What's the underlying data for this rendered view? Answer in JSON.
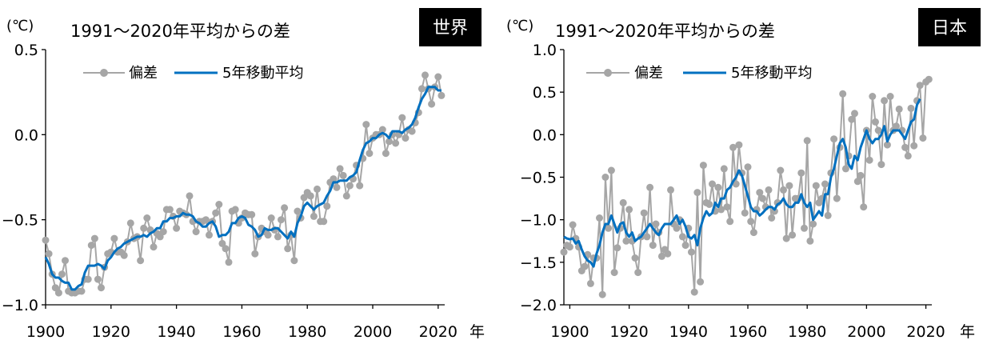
{
  "chart_data": [
    {
      "type": "line",
      "region_label": "世界",
      "unit_label": "(℃)",
      "title": "1991〜2020年平均からの差",
      "xlabel": "年",
      "ylim": [
        -1.0,
        0.5
      ],
      "yticks": [
        -1.0,
        -0.5,
        0.0,
        0.5
      ],
      "ytick_labels": [
        "−1.0",
        "−0.5",
        "0.0",
        "0.5"
      ],
      "xlim": [
        1900,
        2022
      ],
      "xticks": [
        1900,
        1920,
        1940,
        1960,
        1980,
        2000,
        2020
      ],
      "xtick_labels": [
        "1900",
        "1920",
        "1940",
        "1960",
        "1980",
        "2000",
        "2020"
      ],
      "legend": {
        "position": "top-left",
        "entries": [
          "偏差",
          "5年移動平均"
        ]
      },
      "colors": {
        "anomaly": "#a6a6a6",
        "moving_average": "#0070c0"
      },
      "series": [
        {
          "name": "偏差",
          "start_year": 1900,
          "values": [
            -0.62,
            -0.7,
            -0.82,
            -0.9,
            -0.93,
            -0.82,
            -0.74,
            -0.92,
            -0.93,
            -0.93,
            -0.92,
            -0.92,
            -0.85,
            -0.85,
            -0.65,
            -0.61,
            -0.85,
            -0.9,
            -0.78,
            -0.7,
            -0.69,
            -0.61,
            -0.69,
            -0.69,
            -0.71,
            -0.63,
            -0.52,
            -0.61,
            -0.6,
            -0.74,
            -0.55,
            -0.49,
            -0.56,
            -0.66,
            -0.58,
            -0.6,
            -0.57,
            -0.44,
            -0.44,
            -0.48,
            -0.55,
            -0.45,
            -0.46,
            -0.47,
            -0.36,
            -0.51,
            -0.57,
            -0.51,
            -0.51,
            -0.5,
            -0.59,
            -0.51,
            -0.46,
            -0.41,
            -0.64,
            -0.67,
            -0.75,
            -0.45,
            -0.44,
            -0.52,
            -0.49,
            -0.46,
            -0.47,
            -0.47,
            -0.7,
            -0.6,
            -0.55,
            -0.57,
            -0.59,
            -0.49,
            -0.56,
            -0.6,
            -0.5,
            -0.43,
            -0.67,
            -0.59,
            -0.74,
            -0.45,
            -0.49,
            -0.37,
            -0.34,
            -0.36,
            -0.48,
            -0.32,
            -0.51,
            -0.51,
            -0.42,
            -0.28,
            -0.26,
            -0.31,
            -0.2,
            -0.24,
            -0.36,
            -0.3,
            -0.26,
            -0.18,
            -0.3,
            -0.14,
            0.06,
            -0.11,
            -0.02,
            0.0,
            0.0,
            0.03,
            -0.11,
            -0.04,
            0.0,
            -0.05,
            0.0,
            0.1,
            -0.02,
            0.03,
            0.02,
            0.07,
            0.13,
            0.27,
            0.35,
            0.27,
            0.18,
            0.28,
            0.34,
            0.23
          ]
        },
        {
          "name": "5年移動平均",
          "start_year": 1900,
          "values": [
            -0.72,
            -0.76,
            -0.82,
            -0.84,
            -0.84,
            -0.86,
            -0.87,
            -0.87,
            -0.91,
            -0.91,
            -0.89,
            -0.88,
            -0.81,
            -0.77,
            -0.77,
            -0.77,
            -0.76,
            -0.77,
            -0.79,
            -0.74,
            -0.72,
            -0.69,
            -0.67,
            -0.66,
            -0.64,
            -0.63,
            -0.62,
            -0.61,
            -0.6,
            -0.6,
            -0.59,
            -0.6,
            -0.58,
            -0.57,
            -0.55,
            -0.55,
            -0.51,
            -0.51,
            -0.49,
            -0.49,
            -0.48,
            -0.48,
            -0.46,
            -0.47,
            -0.47,
            -0.48,
            -0.51,
            -0.52,
            -0.54,
            -0.54,
            -0.52,
            -0.51,
            -0.54,
            -0.6,
            -0.59,
            -0.59,
            -0.57,
            -0.52,
            -0.52,
            -0.49,
            -0.48,
            -0.49,
            -0.53,
            -0.54,
            -0.56,
            -0.6,
            -0.59,
            -0.55,
            -0.56,
            -0.56,
            -0.55,
            -0.55,
            -0.57,
            -0.59,
            -0.61,
            -0.57,
            -0.6,
            -0.52,
            -0.48,
            -0.42,
            -0.4,
            -0.42,
            -0.44,
            -0.42,
            -0.41,
            -0.4,
            -0.36,
            -0.33,
            -0.28,
            -0.28,
            -0.27,
            -0.27,
            -0.27,
            -0.25,
            -0.24,
            -0.22,
            -0.15,
            -0.09,
            -0.05,
            -0.04,
            -0.02,
            -0.02,
            0.0,
            0.01,
            0.0,
            -0.02,
            0.02,
            0.02,
            0.02,
            0.01,
            0.03,
            0.04,
            0.06,
            0.1,
            0.16,
            0.21,
            0.24,
            0.28,
            0.28,
            0.28,
            0.26,
            0.26
          ]
        }
      ]
    },
    {
      "type": "line",
      "region_label": "日本",
      "unit_label": "(℃)",
      "title": "1991〜2020年平均からの差",
      "xlabel": "年",
      "ylim": [
        -2.0,
        1.0
      ],
      "yticks": [
        -2.0,
        -1.5,
        -1.0,
        -0.5,
        0.0,
        0.5,
        1.0
      ],
      "ytick_labels": [
        "−2.0",
        "−1.5",
        "−1.0",
        "−0.5",
        "0.0",
        "0.5",
        "1.0"
      ],
      "xlim": [
        1898,
        2022
      ],
      "xticks": [
        1900,
        1920,
        1940,
        1960,
        1980,
        2000,
        2020
      ],
      "xtick_labels": [
        "1900",
        "1920",
        "1940",
        "1960",
        "1980",
        "2000",
        "2020"
      ],
      "legend": {
        "position": "top-left",
        "entries": [
          "偏差",
          "5年移動平均"
        ]
      },
      "colors": {
        "anomaly": "#a6a6a6",
        "moving_average": "#0070c0"
      },
      "series": [
        {
          "name": "偏差",
          "start_year": 1898,
          "values": [
            -1.38,
            -1.3,
            -1.32,
            -1.06,
            -1.22,
            -1.32,
            -1.6,
            -1.55,
            -1.41,
            -1.75,
            -1.45,
            -1.45,
            -0.98,
            -1.88,
            -0.5,
            -1.1,
            -0.42,
            -1.62,
            -1.33,
            -1.1,
            -0.8,
            -1.25,
            -0.88,
            -1.25,
            -1.45,
            -1.62,
            -1.2,
            -0.92,
            -1.2,
            -0.62,
            -1.3,
            -1.05,
            -1.15,
            -1.43,
            -1.35,
            -1.4,
            -0.65,
            -1.05,
            -1.1,
            -1.0,
            -1.2,
            -1.3,
            -1.1,
            -1.38,
            -1.85,
            -0.68,
            -1.73,
            -0.36,
            -0.8,
            -0.82,
            -0.58,
            -0.9,
            -0.62,
            -0.88,
            -0.4,
            -0.85,
            -1.02,
            -0.15,
            -0.58,
            -0.12,
            -0.45,
            -0.92,
            -0.38,
            -1.02,
            -1.15,
            -0.88,
            -0.68,
            -0.75,
            -0.85,
            -0.65,
            -0.98,
            -0.9,
            -0.8,
            -0.42,
            -0.65,
            -1.22,
            -0.6,
            -1.18,
            -0.75,
            -0.75,
            -0.45,
            -1.1,
            -0.07,
            -1.25,
            -1.05,
            -0.6,
            -0.8,
            -0.75,
            -0.58,
            -0.95,
            -0.45,
            -0.05,
            -0.75,
            -0.15,
            0.48,
            -0.4,
            -0.25,
            0.18,
            0.25,
            -0.55,
            -0.48,
            -0.85,
            0.05,
            -0.3,
            0.45,
            0.15,
            0.05,
            -0.35,
            0.4,
            -0.12,
            0.45,
            0.05,
            0.1,
            0.3,
            0.05,
            -0.15,
            -0.25,
            0.31,
            -0.13,
            0.4,
            0.58,
            -0.04,
            0.62,
            0.65
          ]
        },
        {
          "name": "5年移動平均",
          "start_year": 1898,
          "values": [
            -1.2,
            -1.22,
            -1.23,
            -1.22,
            -1.28,
            -1.25,
            -1.35,
            -1.43,
            -1.48,
            -1.5,
            -1.55,
            -1.4,
            -1.3,
            -1.15,
            -1.05,
            -1.05,
            -0.95,
            -1.05,
            -1.15,
            -1.05,
            -1.03,
            -1.15,
            -1.2,
            -1.15,
            -1.25,
            -1.22,
            -1.2,
            -1.15,
            -1.1,
            -1.05,
            -1.1,
            -1.15,
            -1.18,
            -1.1,
            -1.05,
            -1.05,
            -1.05,
            -1.0,
            -0.95,
            -1.05,
            -1.0,
            -1.08,
            -1.2,
            -1.22,
            -1.18,
            -1.3,
            -1.1,
            -0.98,
            -0.9,
            -0.95,
            -0.92,
            -0.8,
            -0.85,
            -0.75,
            -0.75,
            -0.65,
            -0.62,
            -0.55,
            -0.5,
            -0.42,
            -0.48,
            -0.6,
            -0.72,
            -0.85,
            -0.9,
            -0.9,
            -0.95,
            -0.92,
            -0.88,
            -0.85,
            -0.85,
            -0.88,
            -0.82,
            -0.8,
            -0.75,
            -0.82,
            -0.85,
            -0.85,
            -0.8,
            -0.8,
            -0.7,
            -0.8,
            -0.85,
            -0.8,
            -1.0,
            -0.95,
            -0.9,
            -0.95,
            -0.7,
            -0.7,
            -0.5,
            -0.4,
            -0.25,
            -0.1,
            -0.05,
            -0.15,
            -0.35,
            -0.4,
            -0.25,
            -0.3,
            -0.15,
            -0.05,
            0.05,
            -0.05,
            -0.1,
            -0.05,
            -0.05,
            0.0,
            0.1,
            -0.08,
            0.0,
            0.05,
            0.05,
            0.05,
            0.0,
            -0.05,
            0.05,
            0.15,
            0.18,
            0.35,
            0.42
          ]
        }
      ]
    }
  ]
}
